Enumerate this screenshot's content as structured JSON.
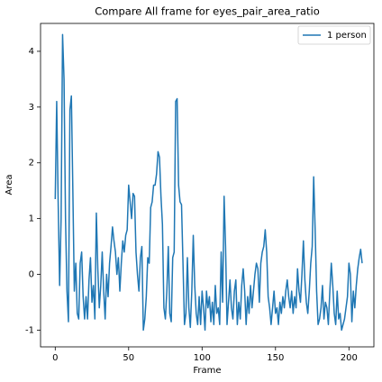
{
  "chart_data": {
    "type": "line",
    "title": "Compare All frame for eyes_pair_area_ratio",
    "x_label": "Frame",
    "y_label": "Area",
    "x": [
      0,
      1,
      2,
      3,
      4,
      5,
      6,
      7,
      8,
      9,
      10,
      11,
      12,
      13,
      14,
      15,
      16,
      17,
      18,
      19,
      20,
      21,
      22,
      23,
      24,
      25,
      26,
      27,
      28,
      29,
      30,
      31,
      32,
      33,
      34,
      35,
      36,
      37,
      38,
      39,
      40,
      41,
      42,
      43,
      44,
      45,
      46,
      47,
      48,
      49,
      50,
      51,
      52,
      53,
      54,
      55,
      56,
      57,
      58,
      59,
      60,
      61,
      62,
      63,
      64,
      65,
      66,
      67,
      68,
      69,
      70,
      71,
      72,
      73,
      74,
      75,
      76,
      77,
      78,
      79,
      80,
      81,
      82,
      83,
      84,
      85,
      86,
      87,
      88,
      89,
      90,
      91,
      92,
      93,
      94,
      95,
      96,
      97,
      98,
      99,
      100,
      101,
      102,
      103,
      104,
      105,
      106,
      107,
      108,
      109,
      110,
      111,
      112,
      113,
      114,
      115,
      116,
      117,
      118,
      119,
      120,
      121,
      122,
      123,
      124,
      125,
      126,
      127,
      128,
      129,
      130,
      131,
      132,
      133,
      134,
      135,
      136,
      137,
      138,
      139,
      140,
      141,
      142,
      143,
      144,
      145,
      146,
      147,
      148,
      149,
      150,
      151,
      152,
      153,
      154,
      155,
      156,
      157,
      158,
      159,
      160,
      161,
      162,
      163,
      164,
      165,
      166,
      167,
      168,
      169,
      170,
      171,
      172,
      173,
      174,
      175,
      176,
      177,
      178,
      179,
      180,
      181,
      182,
      183,
      184,
      185,
      186,
      187,
      188,
      189,
      190,
      191,
      192,
      193,
      194,
      195,
      196,
      197,
      198,
      199,
      200,
      201,
      202,
      203,
      204,
      205,
      206,
      207,
      208,
      209
    ],
    "series": [
      {
        "name": "1 person",
        "color": "#1f77b4",
        "values": [
          1.35,
          3.1,
          1.3,
          -0.2,
          1.0,
          4.3,
          3.5,
          1.0,
          -0.3,
          -0.85,
          2.95,
          3.2,
          1.5,
          -0.3,
          0.2,
          -0.7,
          -0.8,
          0.2,
          0.4,
          -0.4,
          -0.8,
          -0.4,
          -0.8,
          -0.1,
          0.3,
          -0.5,
          -0.2,
          -0.8,
          1.1,
          0.1,
          -0.6,
          -0.2,
          0.4,
          -0.3,
          -0.8,
          0.0,
          -0.4,
          0.2,
          0.5,
          0.85,
          0.6,
          0.4,
          0.0,
          0.3,
          -0.3,
          0.2,
          0.6,
          0.4,
          0.7,
          0.8,
          1.6,
          1.3,
          1.0,
          1.45,
          1.4,
          0.4,
          0.0,
          -0.3,
          0.3,
          0.5,
          -1.0,
          -0.8,
          -0.4,
          0.3,
          0.2,
          1.2,
          1.3,
          1.6,
          1.6,
          1.8,
          2.2,
          2.1,
          1.4,
          0.9,
          -0.6,
          -0.8,
          -0.3,
          0.5,
          -0.7,
          -0.85,
          0.3,
          0.4,
          3.1,
          3.15,
          1.6,
          1.3,
          1.25,
          0.2,
          -0.9,
          -0.7,
          0.3,
          -0.6,
          -0.95,
          -0.3,
          0.7,
          -0.2,
          -0.7,
          -0.9,
          -0.4,
          -0.9,
          -0.3,
          -0.6,
          -1.0,
          -0.3,
          -0.6,
          -0.4,
          -0.85,
          -0.5,
          -0.9,
          -0.2,
          -0.7,
          -0.6,
          -0.9,
          0.4,
          -0.5,
          1.4,
          0.5,
          -0.9,
          -0.5,
          -0.1,
          -0.6,
          -0.8,
          -0.3,
          -0.1,
          -0.9,
          -0.5,
          -0.8,
          -0.2,
          0.1,
          -0.3,
          -0.9,
          -0.4,
          -0.7,
          -0.2,
          -0.6,
          -0.3,
          0.0,
          0.2,
          0.1,
          -0.5,
          0.2,
          0.4,
          0.5,
          0.8,
          0.4,
          -0.4,
          -0.6,
          -0.9,
          -0.6,
          -0.3,
          -0.7,
          -0.6,
          -0.9,
          -0.5,
          -0.7,
          -0.4,
          -0.6,
          -0.3,
          -0.1,
          -0.4,
          -0.6,
          -0.3,
          -0.7,
          -0.4,
          -0.6,
          0.1,
          -0.3,
          -0.5,
          0.0,
          0.6,
          -0.1,
          -0.5,
          -0.7,
          -0.3,
          0.2,
          0.5,
          1.75,
          0.8,
          -0.3,
          -0.9,
          -0.8,
          -0.6,
          -0.2,
          -0.8,
          -0.5,
          -0.6,
          -0.9,
          -0.3,
          0.2,
          -0.2,
          -0.7,
          -0.9,
          -0.3,
          -0.8,
          -0.7,
          -1.0,
          -0.9,
          -0.8,
          -0.6,
          -0.4,
          0.2,
          0.0,
          -0.85,
          -0.3,
          -0.6,
          -0.2,
          0.1,
          0.3,
          0.45,
          0.2
        ]
      }
    ],
    "xlim": [
      -10,
      217
    ],
    "ylim": [
      -1.3,
      4.5
    ],
    "xticks": [
      0,
      50,
      100,
      150,
      200
    ],
    "yticks": [
      -1,
      0,
      1,
      2,
      3,
      4
    ],
    "grid": false,
    "legend": "upper right"
  }
}
